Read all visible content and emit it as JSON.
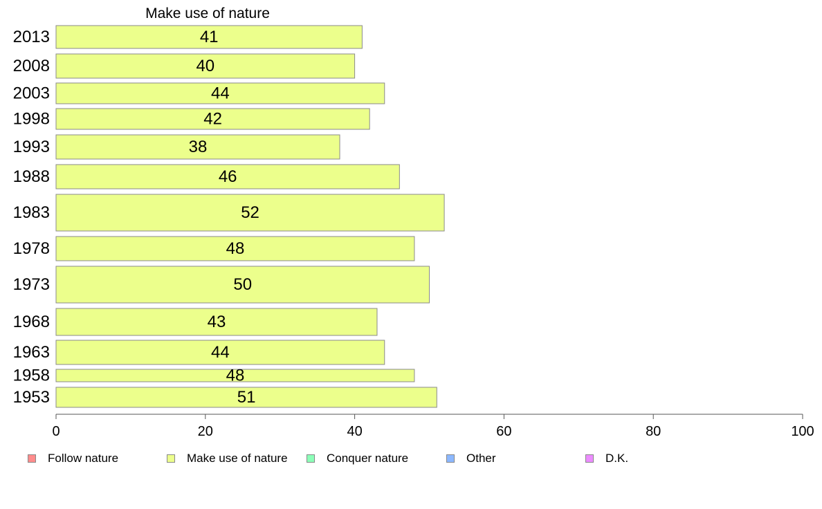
{
  "chart_data": {
    "type": "bar",
    "orientation": "horizontal",
    "title": "Make use of nature",
    "categories": [
      "2013",
      "2008",
      "2003",
      "1998",
      "1993",
      "1988",
      "1983",
      "1978",
      "1973",
      "1968",
      "1963",
      "1958",
      "1953"
    ],
    "values": [
      41,
      40,
      44,
      42,
      38,
      46,
      52,
      48,
      50,
      43,
      44,
      48,
      51
    ],
    "data_labels": [
      "41",
      "40",
      "44",
      "42",
      "38",
      "46",
      "52",
      "48",
      "50",
      "43",
      "44",
      "48",
      "51"
    ],
    "xlim": [
      0,
      100
    ],
    "x_ticks": [
      "0",
      "20",
      "40",
      "60",
      "80",
      "100"
    ],
    "grid": false,
    "bar_color": "#ecff8c",
    "legend_placement": "bottom",
    "legend": [
      {
        "label": "Follow nature",
        "color": "#ff8c8c"
      },
      {
        "label": "Make use of nature",
        "color": "#ecff8c"
      },
      {
        "label": "Conquer nature",
        "color": "#8cffb8"
      },
      {
        "label": "Other",
        "color": "#8cb8ff"
      },
      {
        "label": "D.K.",
        "color": "#ec8cff"
      }
    ]
  }
}
